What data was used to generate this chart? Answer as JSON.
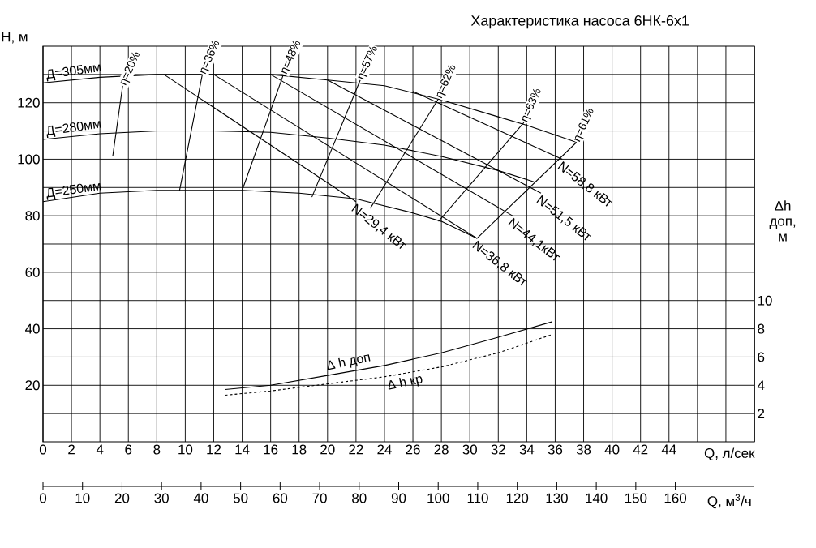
{
  "chart_data": {
    "type": "line",
    "title": "Характеристика насоса 6НК-6х1",
    "xlabel": "Q, л/сек",
    "ylabel": "H, м",
    "y2label": "Δh доп, м",
    "x2label": "Q, м$^{3}$/ч",
    "xlim": [
      0,
      50
    ],
    "ylim": [
      0,
      140
    ],
    "y2lim": [
      0,
      28
    ],
    "x2lim": [
      0,
      180
    ],
    "xticks": [
      0,
      2,
      4,
      6,
      8,
      10,
      12,
      14,
      16,
      18,
      20,
      22,
      24,
      26,
      28,
      30,
      32,
      34,
      36,
      38,
      40,
      42,
      44,
      {
        "value": 46,
        "label": null
      },
      {
        "value": 48,
        "label": null
      }
    ],
    "yticks": [
      {
        "value": 10,
        "label": null
      },
      20,
      {
        "value": 30,
        "label": null
      },
      40,
      {
        "value": 50,
        "label": null
      },
      60,
      {
        "value": 70,
        "label": null
      },
      80,
      {
        "value": 90,
        "label": null
      },
      100,
      {
        "value": 110,
        "label": null
      },
      120,
      {
        "value": 130,
        "label": null
      }
    ],
    "y2ticks": [
      2,
      4,
      6,
      8,
      10
    ],
    "x2ticks": [
      0,
      10,
      20,
      30,
      40,
      50,
      60,
      70,
      80,
      90,
      100,
      110,
      120,
      130,
      140,
      150,
      160
    ],
    "grid": true,
    "marker": "none",
    "line_style": "solid",
    "series": [
      {
        "name": "Д=305мм",
        "color": "#000000",
        "x": [
          0,
          4,
          8,
          12,
          16,
          20,
          24,
          28,
          32,
          34,
          37.5
        ],
        "values": [
          127,
          129,
          130,
          130,
          130,
          128,
          126,
          121,
          115,
          112,
          106
        ]
      },
      {
        "name": "Д=280мм",
        "color": "#000000",
        "x": [
          0,
          4,
          8,
          12,
          16,
          20,
          24,
          28,
          32,
          34.5
        ],
        "values": [
          107,
          109,
          110,
          110,
          109.5,
          107.5,
          105,
          101,
          96,
          92
        ]
      },
      {
        "name": "Д=250мм",
        "color": "#000000",
        "x": [
          0,
          4,
          8,
          14,
          18,
          22,
          26,
          28,
          30.5
        ],
        "values": [
          85,
          88,
          89,
          89,
          88,
          86,
          81,
          78,
          72
        ]
      },
      {
        "name": "η=20%",
        "color": "#000000",
        "x": [
          4.9,
          5.6
        ],
        "values": [
          101,
          126
        ]
      },
      {
        "name": "η=36%",
        "color": "#000000",
        "x": [
          9.6,
          11.2
        ],
        "values": [
          89,
          130
        ]
      },
      {
        "name": "η=48%",
        "color": "#000000",
        "x": [
          14,
          16.9
        ],
        "values": [
          89,
          130
        ]
      },
      {
        "name": "η=57%",
        "color": "#000000",
        "x": [
          18.9,
          22.3
        ],
        "values": [
          86.6,
          128
        ]
      },
      {
        "name": "η=62%",
        "color": "#000000",
        "x": [
          23,
          27.8
        ],
        "values": [
          82.6,
          121.4
        ]
      },
      {
        "name": "η=63%",
        "color": "#000000",
        "x": [
          27.8,
          33.8
        ],
        "values": [
          78,
          113
        ]
      },
      {
        "name": "η=61%",
        "color": "#000000",
        "x": [
          30.5,
          37.5
        ],
        "values": [
          72,
          106
        ]
      },
      {
        "name": "N=29,4 кВт",
        "color": "#000000",
        "x": [
          8.5,
          22
        ],
        "values": [
          130,
          85
        ]
      },
      {
        "name": "N=36,8 кВт",
        "color": "#000000",
        "x": [
          12,
          30.5
        ],
        "values": [
          130,
          72
        ]
      },
      {
        "name": "N=44,1кВт",
        "color": "#000000",
        "x": [
          16,
          33
        ],
        "values": [
          130,
          80
        ]
      },
      {
        "name": "N=51,5 кВт",
        "color": "#000000",
        "x": [
          20,
          35
        ],
        "values": [
          128,
          88
        ]
      },
      {
        "name": "N=58,8 кВт",
        "color": "#000000",
        "x": [
          26,
          36.5
        ],
        "values": [
          124,
          100
        ]
      },
      {
        "name": "Δ h доп",
        "color": "#000000",
        "axis": "y2",
        "x": [
          12.8,
          16,
          20,
          24,
          28,
          32,
          35.8
        ],
        "values": [
          3.7,
          4.0,
          4.7,
          5.4,
          6.3,
          7.4,
          8.5
        ]
      },
      {
        "name": "Δ h кр",
        "color": "#000000",
        "axis": "y2",
        "line_style": "dashed",
        "x": [
          12.8,
          16,
          20,
          24,
          28,
          32,
          35.8
        ],
        "values": [
          3.3,
          3.6,
          4.1,
          4.6,
          5.3,
          6.3,
          7.6
        ]
      }
    ]
  }
}
